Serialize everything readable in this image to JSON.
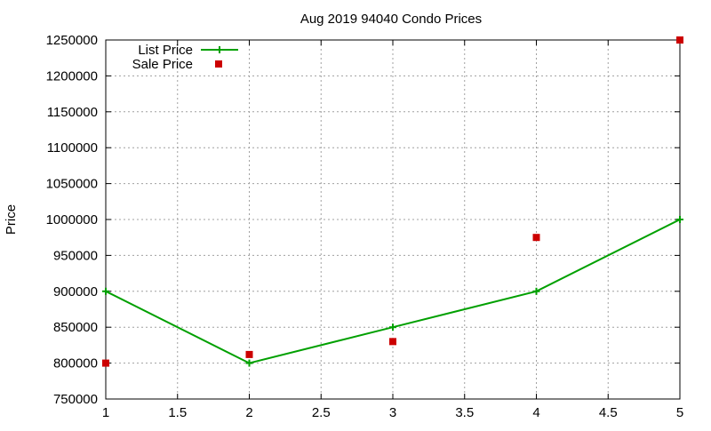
{
  "chart_data": {
    "type": "line",
    "title": "Aug 2019 94040 Condo Prices",
    "xlabel": "",
    "ylabel": "Price",
    "xlim": [
      1,
      5
    ],
    "ylim": [
      750000,
      1250000
    ],
    "x_ticks": [
      "1",
      "1.5",
      "2",
      "2.5",
      "3",
      "3.5",
      "4",
      "4.5",
      "5"
    ],
    "y_ticks": [
      "750000",
      "800000",
      "850000",
      "900000",
      "950000",
      "1000000",
      "1050000",
      "1100000",
      "1150000",
      "1200000",
      "1250000"
    ],
    "grid": true,
    "legend_position": "top-left",
    "x": [
      1,
      2,
      3,
      4,
      5
    ],
    "series": [
      {
        "name": "List Price",
        "style": "linespoints",
        "color": "#00a000",
        "values": [
          900000,
          800000,
          850000,
          900000,
          1000000
        ]
      },
      {
        "name": "Sale Price",
        "style": "points",
        "color": "#cc0000",
        "values": [
          800000,
          812000,
          830000,
          975000,
          1250000
        ]
      }
    ]
  }
}
